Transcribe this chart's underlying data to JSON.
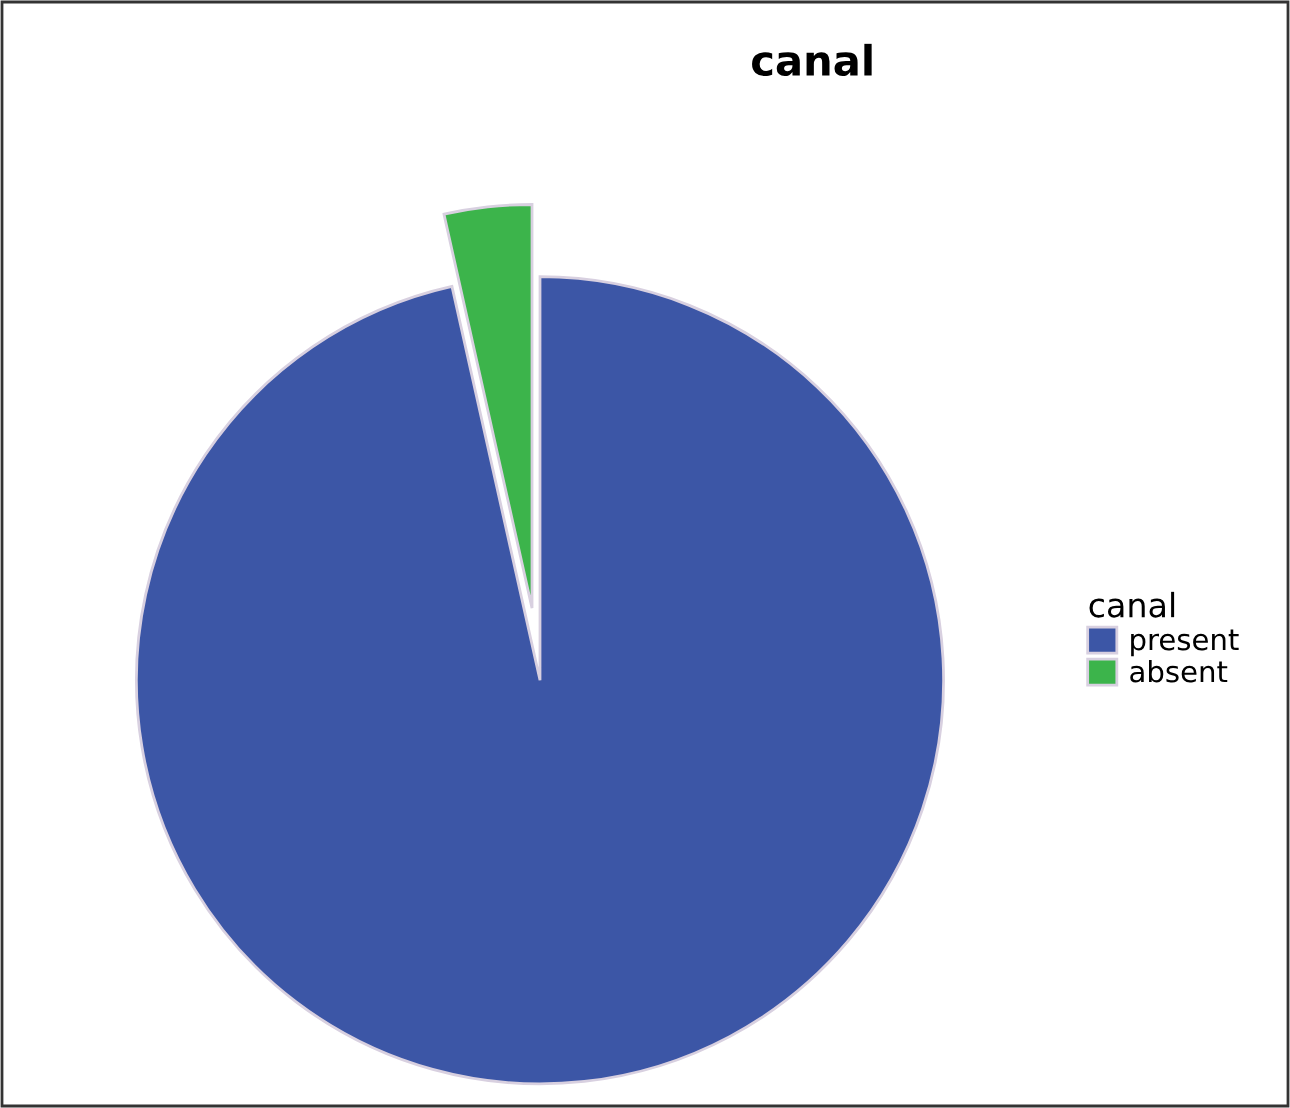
{
  "chart_data": {
    "type": "pie",
    "title": "canal",
    "legend_title": "canal",
    "categories": [
      "present",
      "absent"
    ],
    "values": [
      96.5,
      3.5
    ],
    "colors": [
      "#3c56a6",
      "#3cb44b"
    ],
    "legend": "right"
  }
}
